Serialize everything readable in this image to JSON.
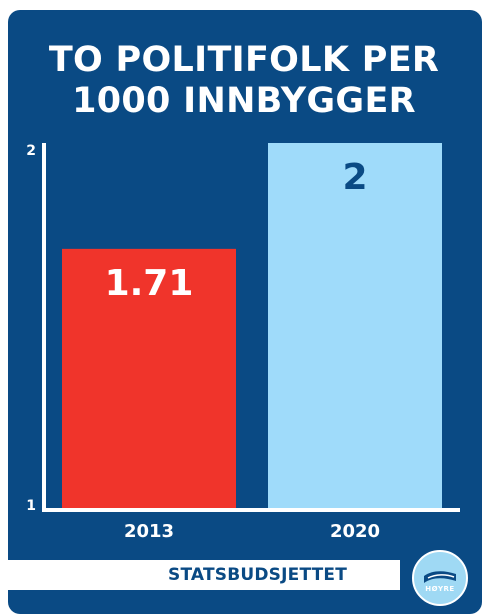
{
  "title_lines": [
    "TO POLITIFOLK PER",
    "1000 INNBYGGER"
  ],
  "footer": {
    "label": "STATSBUDSJETTET"
  },
  "logo": {
    "text": "HØYRE",
    "icon": "hoyre-party-logo"
  },
  "colors": {
    "background": "#0a4a84",
    "bar_2013": "#f0342b",
    "bar_2020": "#9fdbfa",
    "label_2013": "#ffffff",
    "label_2020": "#0a4a84",
    "axis": "#ffffff"
  },
  "chart_data": {
    "type": "bar",
    "title": "TO POLITIFOLK PER 1000 INNBYGGER",
    "categories": [
      "2013",
      "2020"
    ],
    "values": [
      1.71,
      2
    ],
    "data_labels": [
      "1.71",
      "2"
    ],
    "ylim": [
      1,
      2
    ],
    "y_ticks": [
      "1",
      "2"
    ],
    "grid": false,
    "legend": "none"
  }
}
